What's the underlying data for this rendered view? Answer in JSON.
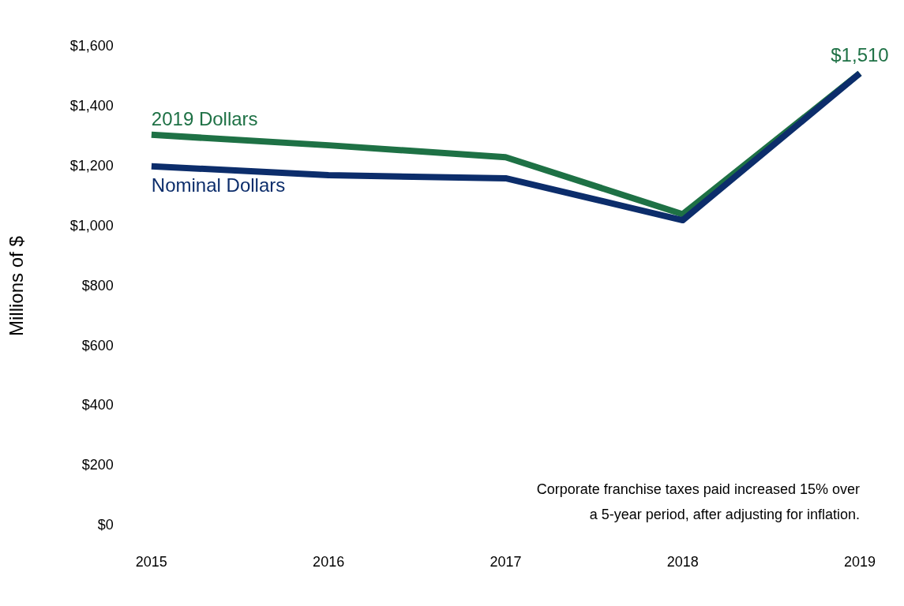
{
  "chart_data": {
    "type": "line",
    "ylabel": "Millions of $",
    "categories": [
      "2015",
      "2016",
      "2017",
      "2018",
      "2019"
    ],
    "series": [
      {
        "name": "2019 Dollars",
        "color": "#1e7145",
        "values": [
          1305,
          1270,
          1230,
          1040,
          1510
        ],
        "value_labels": [
          null,
          null,
          null,
          null,
          "$1,510"
        ]
      },
      {
        "name": "Nominal Dollars",
        "color": "#0c2d6b",
        "values": [
          1200,
          1170,
          1160,
          1020,
          1510
        ]
      }
    ],
    "ylim": [
      0,
      1600
    ],
    "yticks": [
      {
        "value": 0,
        "label": "$0"
      },
      {
        "value": 200,
        "label": "$200"
      },
      {
        "value": 400,
        "label": "$400"
      },
      {
        "value": 600,
        "label": "$600"
      },
      {
        "value": 800,
        "label": "$800"
      },
      {
        "value": 1000,
        "label": "$1,000"
      },
      {
        "value": 1200,
        "label": "$1,200"
      },
      {
        "value": 1400,
        "label": "$1,400"
      },
      {
        "value": 1600,
        "label": "$1,600"
      }
    ],
    "grid": false,
    "legend": false,
    "marker": "none",
    "line_style": "solid",
    "annotations": [
      "Corporate franchise taxes paid increased 15% over a 5-year period, after adjusting for inflation."
    ]
  }
}
